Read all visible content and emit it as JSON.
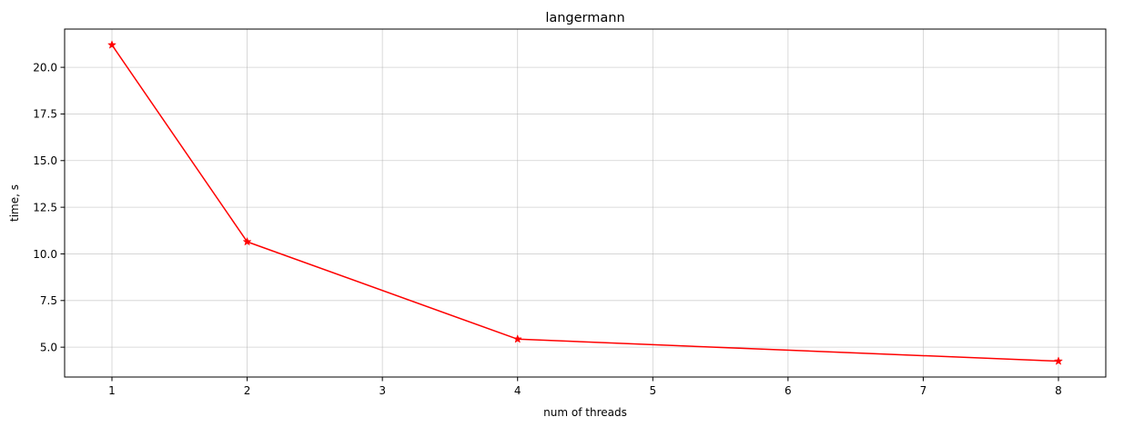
{
  "chart_data": {
    "type": "line",
    "title": "langermann",
    "xlabel": "num of threads",
    "ylabel": "time, s",
    "x": [
      1,
      2,
      4,
      8
    ],
    "series": [
      {
        "values": [
          21.2,
          10.65,
          5.43,
          4.25
        ],
        "color": "#ff0000",
        "marker": "star"
      }
    ],
    "xlim": [
      0.65,
      8.35
    ],
    "ylim": [
      3.4,
      22.05
    ],
    "xticks": [
      1,
      2,
      3,
      4,
      5,
      6,
      7,
      8
    ],
    "xtick_labels": [
      "1",
      "2",
      "3",
      "4",
      "5",
      "6",
      "7",
      "8"
    ],
    "yticks": [
      5.0,
      7.5,
      10.0,
      12.5,
      15.0,
      17.5,
      20.0
    ],
    "ytick_labels": [
      "5.0",
      "7.5",
      "10.0",
      "12.5",
      "15.0",
      "17.5",
      "20.0"
    ],
    "grid": true,
    "grid_color": "#b0b0b0",
    "legend": "none"
  }
}
